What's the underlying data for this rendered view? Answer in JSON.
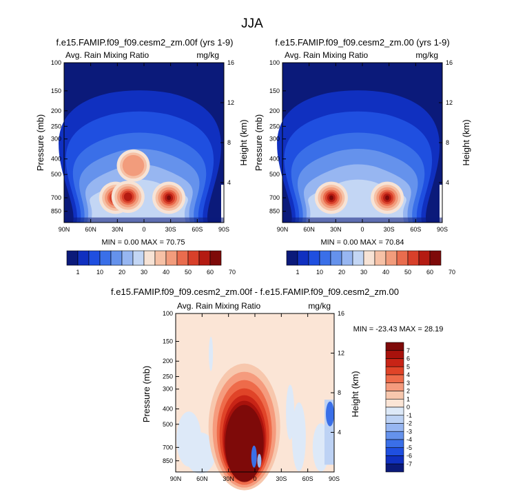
{
  "figure_title": "JJA",
  "chart_data": [
    {
      "type": "heatmap",
      "title": "f.e15.FAMIP.f09_f09.cesm2_zm.00f (yrs 1-9)",
      "subtitle_left": "Avg. Rain Mixing Ratio",
      "subtitle_right": "mg/kg",
      "xlabel": "",
      "ylabel": "Pressure (mb)",
      "ylabel_right": "Height (km)",
      "x_ticks": [
        "90N",
        "60N",
        "30N",
        "0",
        "30S",
        "60S",
        "90S"
      ],
      "y_ticks": [
        "100",
        "150",
        "200",
        "250",
        "300",
        "400",
        "500",
        "700",
        "850"
      ],
      "y_ticks_right": [
        "16",
        "12",
        "8",
        "4"
      ],
      "min_max_text": "MIN =  0.00   MAX =  70.75",
      "min": 0.0,
      "max": 70.75,
      "colorbar_labels": [
        "1",
        "10",
        "20",
        "30",
        "40",
        "50",
        "60",
        "70"
      ],
      "features": [
        {
          "lat": 32,
          "p": 700,
          "value": 70
        },
        {
          "lat": 18,
          "p": 690,
          "value": 62
        },
        {
          "lat": 12,
          "p": 440,
          "value": 50
        },
        {
          "lat": -28,
          "p": 700,
          "value": 68
        }
      ]
    },
    {
      "type": "heatmap",
      "title": "f.e15.FAMIP.f09_f09.cesm2_zm.00 (yrs 1-9)",
      "subtitle_left": "Avg. Rain Mixing Ratio",
      "subtitle_right": "mg/kg",
      "xlabel": "",
      "ylabel": "Pressure (mb)",
      "ylabel_right": "Height (km)",
      "x_ticks": [
        "90N",
        "60N",
        "30N",
        "0",
        "30S",
        "60S",
        "90S"
      ],
      "y_ticks": [
        "100",
        "150",
        "200",
        "250",
        "300",
        "400",
        "500",
        "700",
        "850"
      ],
      "y_ticks_right": [
        "16",
        "12",
        "8",
        "4"
      ],
      "min_max_text": "MIN =  0.00   MAX =  70.84",
      "min": 0.0,
      "max": 70.84,
      "colorbar_labels": [
        "1",
        "10",
        "20",
        "30",
        "40",
        "50",
        "60",
        "70"
      ],
      "features": [
        {
          "lat": 35,
          "p": 700,
          "value": 70
        },
        {
          "lat": -28,
          "p": 700,
          "value": 68
        }
      ]
    },
    {
      "type": "heatmap",
      "title": "f.e15.FAMIP.f09_f09.cesm2_zm.00f - f.e15.FAMIP.f09_f09.cesm2_zm.00",
      "subtitle_left": "Avg. Rain Mixing Ratio",
      "subtitle_right": "mg/kg",
      "xlabel": "",
      "ylabel": "Pressure (mb)",
      "ylabel_right": "Height (km)",
      "x_ticks": [
        "90N",
        "60N",
        "30N",
        "0",
        "30S",
        "60S",
        "90S"
      ],
      "y_ticks": [
        "100",
        "150",
        "200",
        "250",
        "300",
        "400",
        "500",
        "700",
        "850"
      ],
      "y_ticks_right": [
        "16",
        "12",
        "8",
        "4"
      ],
      "min_max_text": "MIN = -23.43   MAX =  28.19",
      "min": -23.43,
      "max": 28.19,
      "colorbar_labels": [
        "7",
        "6",
        "5",
        "4",
        "3",
        "2",
        "1",
        "0",
        "-1",
        "-2",
        "-3",
        "-4",
        "-5",
        "-6",
        "-7"
      ],
      "features": [
        {
          "lat": 10,
          "p": 550,
          "value": 8
        }
      ]
    }
  ],
  "colors": {
    "seq": [
      "#0b1a7a",
      "#1030c0",
      "#1f4fe0",
      "#3a6fe8",
      "#6592ec",
      "#97b6f1",
      "#c3d6f4",
      "#f7e3d5",
      "#f6c1a6",
      "#f29c7c",
      "#e96c4e",
      "#d8402a",
      "#b41b12",
      "#7e0a09"
    ],
    "div": [
      "#7e0a09",
      "#a8120c",
      "#c82416",
      "#e04428",
      "#ee6b4a",
      "#f59b7d",
      "#f7c7ad",
      "#fbe5d6",
      "#dde9f8",
      "#bdd2f4",
      "#97b6f1",
      "#6592ec",
      "#3a6fe8",
      "#1f4fe0",
      "#1030c0",
      "#0b1a7a"
    ]
  }
}
